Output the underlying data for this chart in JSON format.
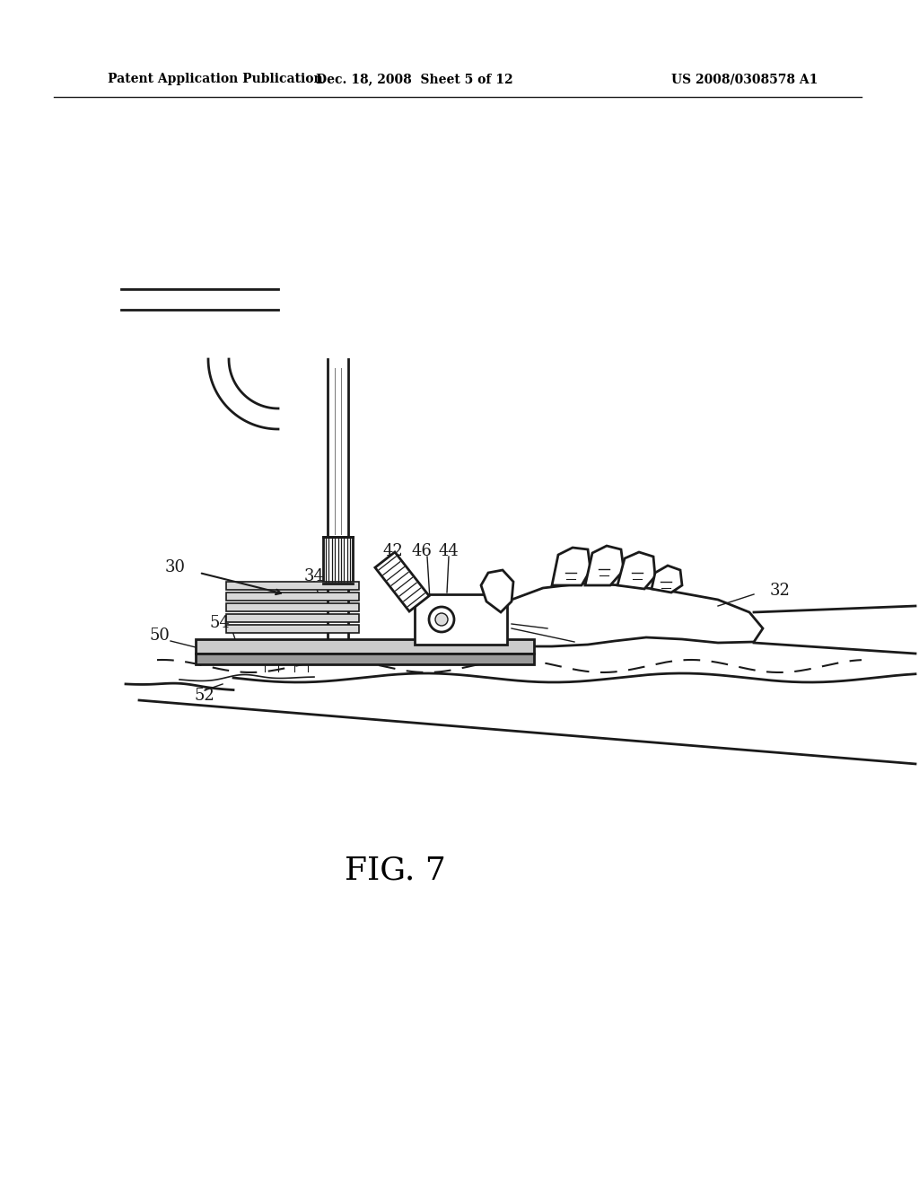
{
  "bg_color": "#ffffff",
  "line_color": "#1a1a1a",
  "header_left": "Patent Application Publication",
  "header_mid": "Dec. 18, 2008  Sheet 5 of 12",
  "header_right": "US 2008/0308578 A1",
  "figure_label": "FIG. 7",
  "lw": 2.0,
  "lw_thin": 1.2
}
